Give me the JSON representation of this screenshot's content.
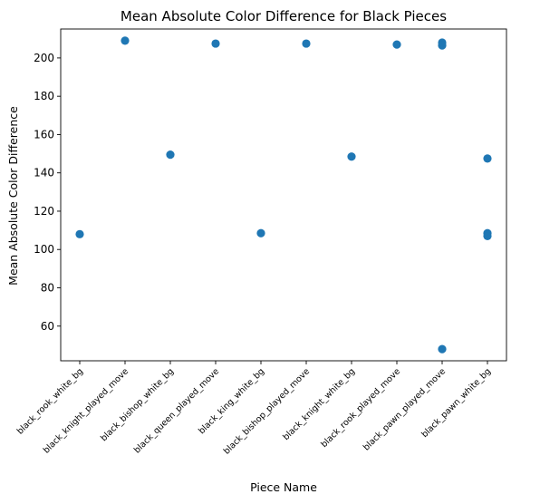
{
  "chart_data": {
    "type": "scatter",
    "title": "Mean Absolute Color Difference for Black Pieces",
    "xlabel": "Piece Name",
    "ylabel": "Mean Absolute Color Difference",
    "categories": [
      "black_rook_white_bg",
      "black_knight_played_move",
      "black_bishop_white_bg",
      "black_queen_played_move",
      "black_king_white_bg",
      "black_bishop_played_move",
      "black_knight_white_bg",
      "black_rook_played_move",
      "black_pawn_played_move",
      "black_pawn_white_bg"
    ],
    "points": [
      {
        "x": "black_rook_white_bg",
        "y": 108
      },
      {
        "x": "black_knight_played_move",
        "y": 209
      },
      {
        "x": "black_bishop_white_bg",
        "y": 149.5
      },
      {
        "x": "black_queen_played_move",
        "y": 207.5
      },
      {
        "x": "black_king_white_bg",
        "y": 108.5
      },
      {
        "x": "black_bishop_played_move",
        "y": 207.5
      },
      {
        "x": "black_knight_white_bg",
        "y": 148.5
      },
      {
        "x": "black_rook_played_move",
        "y": 207
      },
      {
        "x": "black_pawn_played_move",
        "y": 208
      },
      {
        "x": "black_pawn_played_move",
        "y": 206.5
      },
      {
        "x": "black_pawn_played_move",
        "y": 48
      },
      {
        "x": "black_pawn_white_bg",
        "y": 147.5
      },
      {
        "x": "black_pawn_white_bg",
        "y": 108.5
      },
      {
        "x": "black_pawn_white_bg",
        "y": 107
      }
    ],
    "yticks": [
      60,
      80,
      100,
      120,
      140,
      160,
      180,
      200
    ],
    "ylim": [
      41.9,
      215.1
    ],
    "grid": false,
    "marker_color": "#1f77b4"
  }
}
